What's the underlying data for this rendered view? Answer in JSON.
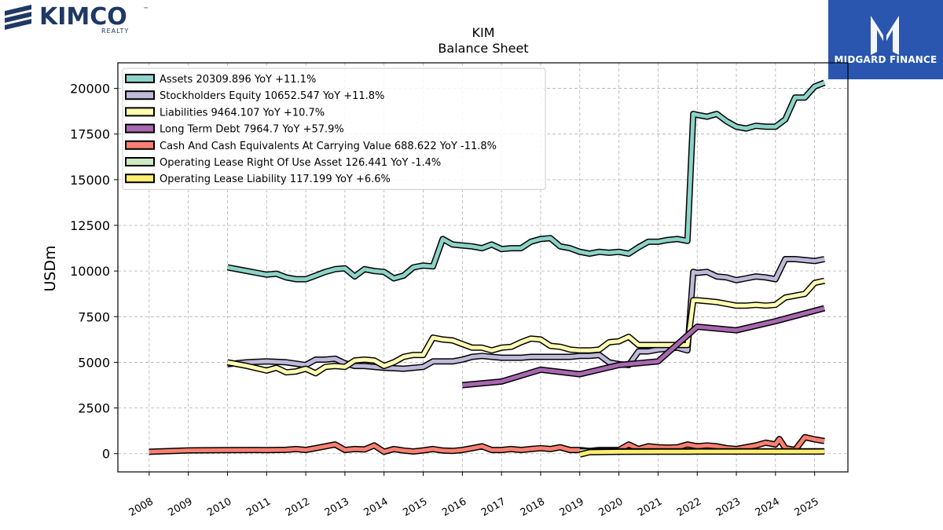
{
  "logos": {
    "left_brand": "KIMCO",
    "left_sub": "REALTY",
    "right_brand": "MIDGARD FINANCE"
  },
  "colors": {
    "assets": "#8dd3c7",
    "equity": "#bebada",
    "liabilities": "#ffffb3",
    "ltdebt": "#a868b0",
    "cash": "#fb8072",
    "rou": "#ccebc5",
    "oplease": "#ffed6f",
    "kimco_navy": "#1f3864",
    "midgard_blue": "#2a56b0"
  },
  "chart_data": {
    "type": "line",
    "title": "KIM",
    "subtitle": "Balance  Sheet",
    "ylabel": "USDm",
    "xlabel": "",
    "xlim": [
      2007.2,
      2025.85
    ],
    "ylim": [
      -1000,
      21400
    ],
    "yticks": [
      0,
      2500,
      5000,
      7500,
      10000,
      12500,
      15000,
      17500,
      20000
    ],
    "xticks": [
      2008,
      2009,
      2010,
      2011,
      2012,
      2013,
      2014,
      2015,
      2016,
      2017,
      2018,
      2019,
      2020,
      2021,
      2022,
      2023,
      2024,
      2025
    ],
    "grid": true,
    "legend_position": "top-left",
    "series": [
      {
        "key": "assets",
        "name": "Assets  20309.896 YoY +11.1%",
        "points": [
          [
            2010.0,
            10200
          ],
          [
            2010.25,
            10100
          ],
          [
            2010.5,
            10000
          ],
          [
            2010.75,
            9900
          ],
          [
            2011.0,
            9800
          ],
          [
            2011.25,
            9850
          ],
          [
            2011.5,
            9650
          ],
          [
            2011.75,
            9550
          ],
          [
            2012.0,
            9550
          ],
          [
            2012.25,
            9750
          ],
          [
            2012.5,
            9950
          ],
          [
            2012.75,
            10100
          ],
          [
            2013.0,
            10150
          ],
          [
            2013.25,
            9700
          ],
          [
            2013.5,
            10100
          ],
          [
            2013.75,
            10000
          ],
          [
            2014.0,
            9950
          ],
          [
            2014.25,
            9600
          ],
          [
            2014.5,
            9750
          ],
          [
            2014.75,
            10200
          ],
          [
            2015.0,
            10300
          ],
          [
            2015.25,
            10250
          ],
          [
            2015.5,
            11750
          ],
          [
            2015.75,
            11450
          ],
          [
            2016.0,
            11400
          ],
          [
            2016.25,
            11350
          ],
          [
            2016.5,
            11250
          ],
          [
            2016.75,
            11450
          ],
          [
            2017.0,
            11200
          ],
          [
            2017.25,
            11250
          ],
          [
            2017.5,
            11250
          ],
          [
            2017.75,
            11600
          ],
          [
            2018.0,
            11750
          ],
          [
            2018.25,
            11800
          ],
          [
            2018.5,
            11350
          ],
          [
            2018.75,
            11250
          ],
          [
            2019.0,
            11050
          ],
          [
            2019.25,
            10950
          ],
          [
            2019.5,
            11050
          ],
          [
            2019.75,
            11000
          ],
          [
            2020.0,
            11050
          ],
          [
            2020.25,
            10950
          ],
          [
            2020.5,
            11300
          ],
          [
            2020.75,
            11600
          ],
          [
            2021.0,
            11600
          ],
          [
            2021.25,
            11700
          ],
          [
            2021.5,
            11750
          ],
          [
            2021.75,
            11650
          ],
          [
            2021.9,
            18600
          ],
          [
            2022.0,
            18550
          ],
          [
            2022.25,
            18450
          ],
          [
            2022.5,
            18600
          ],
          [
            2022.75,
            18200
          ],
          [
            2023.0,
            17900
          ],
          [
            2023.25,
            17800
          ],
          [
            2023.5,
            17950
          ],
          [
            2023.75,
            17900
          ],
          [
            2024.0,
            17900
          ],
          [
            2024.25,
            18300
          ],
          [
            2024.5,
            19500
          ],
          [
            2024.75,
            19500
          ],
          [
            2025.0,
            20100
          ],
          [
            2025.25,
            20310
          ]
        ]
      },
      {
        "key": "equity",
        "name": "Stockholders Equity  10652.547 YoY +11.8%",
        "points": [
          [
            2010.0,
            4900
          ],
          [
            2010.5,
            5000
          ],
          [
            2011.0,
            5050
          ],
          [
            2011.5,
            5000
          ],
          [
            2012.0,
            4850
          ],
          [
            2012.25,
            5150
          ],
          [
            2012.5,
            5150
          ],
          [
            2012.75,
            5200
          ],
          [
            2013.0,
            4950
          ],
          [
            2013.25,
            4800
          ],
          [
            2013.5,
            4800
          ],
          [
            2013.75,
            4750
          ],
          [
            2014.0,
            4700
          ],
          [
            2014.5,
            4650
          ],
          [
            2015.0,
            4750
          ],
          [
            2015.25,
            5050
          ],
          [
            2015.5,
            5050
          ],
          [
            2015.75,
            5050
          ],
          [
            2016.0,
            5150
          ],
          [
            2016.25,
            5300
          ],
          [
            2016.5,
            5350
          ],
          [
            2016.75,
            5300
          ],
          [
            2017.0,
            5250
          ],
          [
            2017.5,
            5250
          ],
          [
            2017.75,
            5300
          ],
          [
            2018.0,
            5300
          ],
          [
            2018.25,
            5300
          ],
          [
            2018.5,
            5300
          ],
          [
            2018.75,
            5300
          ],
          [
            2019.0,
            5350
          ],
          [
            2019.25,
            5350
          ],
          [
            2019.5,
            5400
          ],
          [
            2019.75,
            5000
          ],
          [
            2020.0,
            4900
          ],
          [
            2020.25,
            4850
          ],
          [
            2020.5,
            5600
          ],
          [
            2020.75,
            5600
          ],
          [
            2021.0,
            5700
          ],
          [
            2021.25,
            5750
          ],
          [
            2021.5,
            5800
          ],
          [
            2021.75,
            5650
          ],
          [
            2021.9,
            9950
          ],
          [
            2022.0,
            9900
          ],
          [
            2022.25,
            9950
          ],
          [
            2022.5,
            9700
          ],
          [
            2022.75,
            9650
          ],
          [
            2023.0,
            9500
          ],
          [
            2023.25,
            9600
          ],
          [
            2023.5,
            9700
          ],
          [
            2023.75,
            9650
          ],
          [
            2024.0,
            9550
          ],
          [
            2024.25,
            10650
          ],
          [
            2024.5,
            10650
          ],
          [
            2024.75,
            10600
          ],
          [
            2025.0,
            10550
          ],
          [
            2025.25,
            10653
          ]
        ]
      },
      {
        "key": "liabilities",
        "name": "Liabilities  9464.107 YoY +10.7%",
        "points": [
          [
            2010.0,
            5000
          ],
          [
            2010.5,
            4800
          ],
          [
            2011.0,
            4550
          ],
          [
            2011.25,
            4700
          ],
          [
            2011.5,
            4450
          ],
          [
            2011.75,
            4500
          ],
          [
            2012.0,
            4650
          ],
          [
            2012.25,
            4400
          ],
          [
            2012.5,
            4750
          ],
          [
            2012.75,
            4800
          ],
          [
            2013.0,
            4750
          ],
          [
            2013.25,
            5100
          ],
          [
            2013.5,
            5150
          ],
          [
            2013.75,
            5100
          ],
          [
            2014.0,
            4800
          ],
          [
            2014.25,
            5000
          ],
          [
            2014.5,
            5300
          ],
          [
            2014.75,
            5400
          ],
          [
            2015.0,
            5400
          ],
          [
            2015.25,
            6350
          ],
          [
            2015.5,
            6250
          ],
          [
            2015.75,
            6200
          ],
          [
            2016.0,
            6000
          ],
          [
            2016.25,
            5800
          ],
          [
            2016.5,
            5800
          ],
          [
            2016.75,
            5650
          ],
          [
            2017.0,
            5800
          ],
          [
            2017.25,
            5850
          ],
          [
            2017.5,
            6100
          ],
          [
            2017.75,
            6300
          ],
          [
            2018.0,
            6250
          ],
          [
            2018.25,
            5900
          ],
          [
            2018.5,
            5850
          ],
          [
            2018.75,
            5700
          ],
          [
            2019.0,
            5650
          ],
          [
            2019.25,
            5650
          ],
          [
            2019.5,
            5700
          ],
          [
            2019.75,
            6100
          ],
          [
            2020.0,
            6150
          ],
          [
            2020.25,
            6400
          ],
          [
            2020.5,
            5950
          ],
          [
            2020.75,
            5950
          ],
          [
            2021.0,
            5950
          ],
          [
            2021.25,
            5950
          ],
          [
            2021.5,
            5950
          ],
          [
            2021.75,
            5950
          ],
          [
            2021.9,
            8400
          ],
          [
            2022.0,
            8400
          ],
          [
            2022.25,
            8350
          ],
          [
            2022.5,
            8300
          ],
          [
            2022.75,
            8200
          ],
          [
            2023.0,
            8100
          ],
          [
            2023.25,
            8100
          ],
          [
            2023.5,
            8150
          ],
          [
            2023.75,
            8100
          ],
          [
            2024.0,
            8150
          ],
          [
            2024.25,
            8550
          ],
          [
            2024.5,
            8650
          ],
          [
            2024.75,
            8750
          ],
          [
            2025.0,
            9350
          ],
          [
            2025.25,
            9464
          ]
        ]
      },
      {
        "key": "ltdebt",
        "name": "Long Term Debt  7964.7 YoY +57.9%",
        "points": [
          [
            2016.0,
            3750
          ],
          [
            2017.0,
            3950
          ],
          [
            2018.0,
            4600
          ],
          [
            2019.0,
            4350
          ],
          [
            2020.0,
            4850
          ],
          [
            2021.0,
            5050
          ],
          [
            2022.0,
            6950
          ],
          [
            2023.0,
            6750
          ],
          [
            2024.0,
            7250
          ],
          [
            2025.25,
            7965
          ]
        ]
      },
      {
        "key": "cash",
        "name": "Cash And Cash Equivalents At Carrying Value  688.622 YoY -11.8%",
        "points": [
          [
            2008.0,
            100
          ],
          [
            2009.0,
            180
          ],
          [
            2010.0,
            190
          ],
          [
            2010.75,
            200
          ],
          [
            2011.0,
            190
          ],
          [
            2011.5,
            210
          ],
          [
            2011.75,
            250
          ],
          [
            2012.0,
            200
          ],
          [
            2012.25,
            300
          ],
          [
            2012.5,
            400
          ],
          [
            2012.75,
            500
          ],
          [
            2013.0,
            200
          ],
          [
            2013.25,
            250
          ],
          [
            2013.5,
            230
          ],
          [
            2013.75,
            450
          ],
          [
            2014.0,
            100
          ],
          [
            2014.25,
            250
          ],
          [
            2014.5,
            170
          ],
          [
            2014.75,
            120
          ],
          [
            2015.0,
            180
          ],
          [
            2015.25,
            250
          ],
          [
            2015.5,
            170
          ],
          [
            2015.75,
            150
          ],
          [
            2016.0,
            200
          ],
          [
            2016.25,
            300
          ],
          [
            2016.5,
            400
          ],
          [
            2016.75,
            200
          ],
          [
            2017.0,
            200
          ],
          [
            2017.25,
            250
          ],
          [
            2017.5,
            200
          ],
          [
            2017.75,
            250
          ],
          [
            2018.0,
            300
          ],
          [
            2018.25,
            250
          ],
          [
            2018.5,
            350
          ],
          [
            2018.75,
            200
          ],
          [
            2019.0,
            200
          ],
          [
            2019.25,
            150
          ],
          [
            2019.5,
            200
          ],
          [
            2019.75,
            200
          ],
          [
            2020.0,
            200
          ],
          [
            2020.25,
            500
          ],
          [
            2020.5,
            250
          ],
          [
            2020.75,
            400
          ],
          [
            2021.0,
            350
          ],
          [
            2021.25,
            330
          ],
          [
            2021.5,
            350
          ],
          [
            2021.75,
            500
          ],
          [
            2022.0,
            400
          ],
          [
            2022.25,
            450
          ],
          [
            2022.5,
            400
          ],
          [
            2022.75,
            300
          ],
          [
            2023.0,
            250
          ],
          [
            2023.25,
            350
          ],
          [
            2023.5,
            450
          ],
          [
            2023.75,
            600
          ],
          [
            2024.0,
            500
          ],
          [
            2024.1,
            800
          ],
          [
            2024.25,
            300
          ],
          [
            2024.5,
            200
          ],
          [
            2024.75,
            900
          ],
          [
            2025.0,
            780
          ],
          [
            2025.25,
            689
          ]
        ]
      },
      {
        "key": "rou",
        "name": "Operating Lease Right Of Use Asset  126.441 YoY -1.4%",
        "points": [
          [
            2019.0,
            130
          ],
          [
            2020.0,
            130
          ],
          [
            2021.0,
            128
          ],
          [
            2022.0,
            128
          ],
          [
            2023.0,
            127
          ],
          [
            2024.0,
            128
          ],
          [
            2025.25,
            126
          ]
        ]
      },
      {
        "key": "oplease",
        "name": "Operating Lease Liability  117.199 YoY +6.6%",
        "points": [
          [
            2019.0,
            -50
          ],
          [
            2019.25,
            80
          ],
          [
            2020.0,
            100
          ],
          [
            2021.0,
            105
          ],
          [
            2021.75,
            110
          ],
          [
            2022.0,
            115
          ],
          [
            2023.0,
            115
          ],
          [
            2024.0,
            112
          ],
          [
            2025.0,
            115
          ],
          [
            2025.25,
            117
          ]
        ]
      }
    ]
  }
}
